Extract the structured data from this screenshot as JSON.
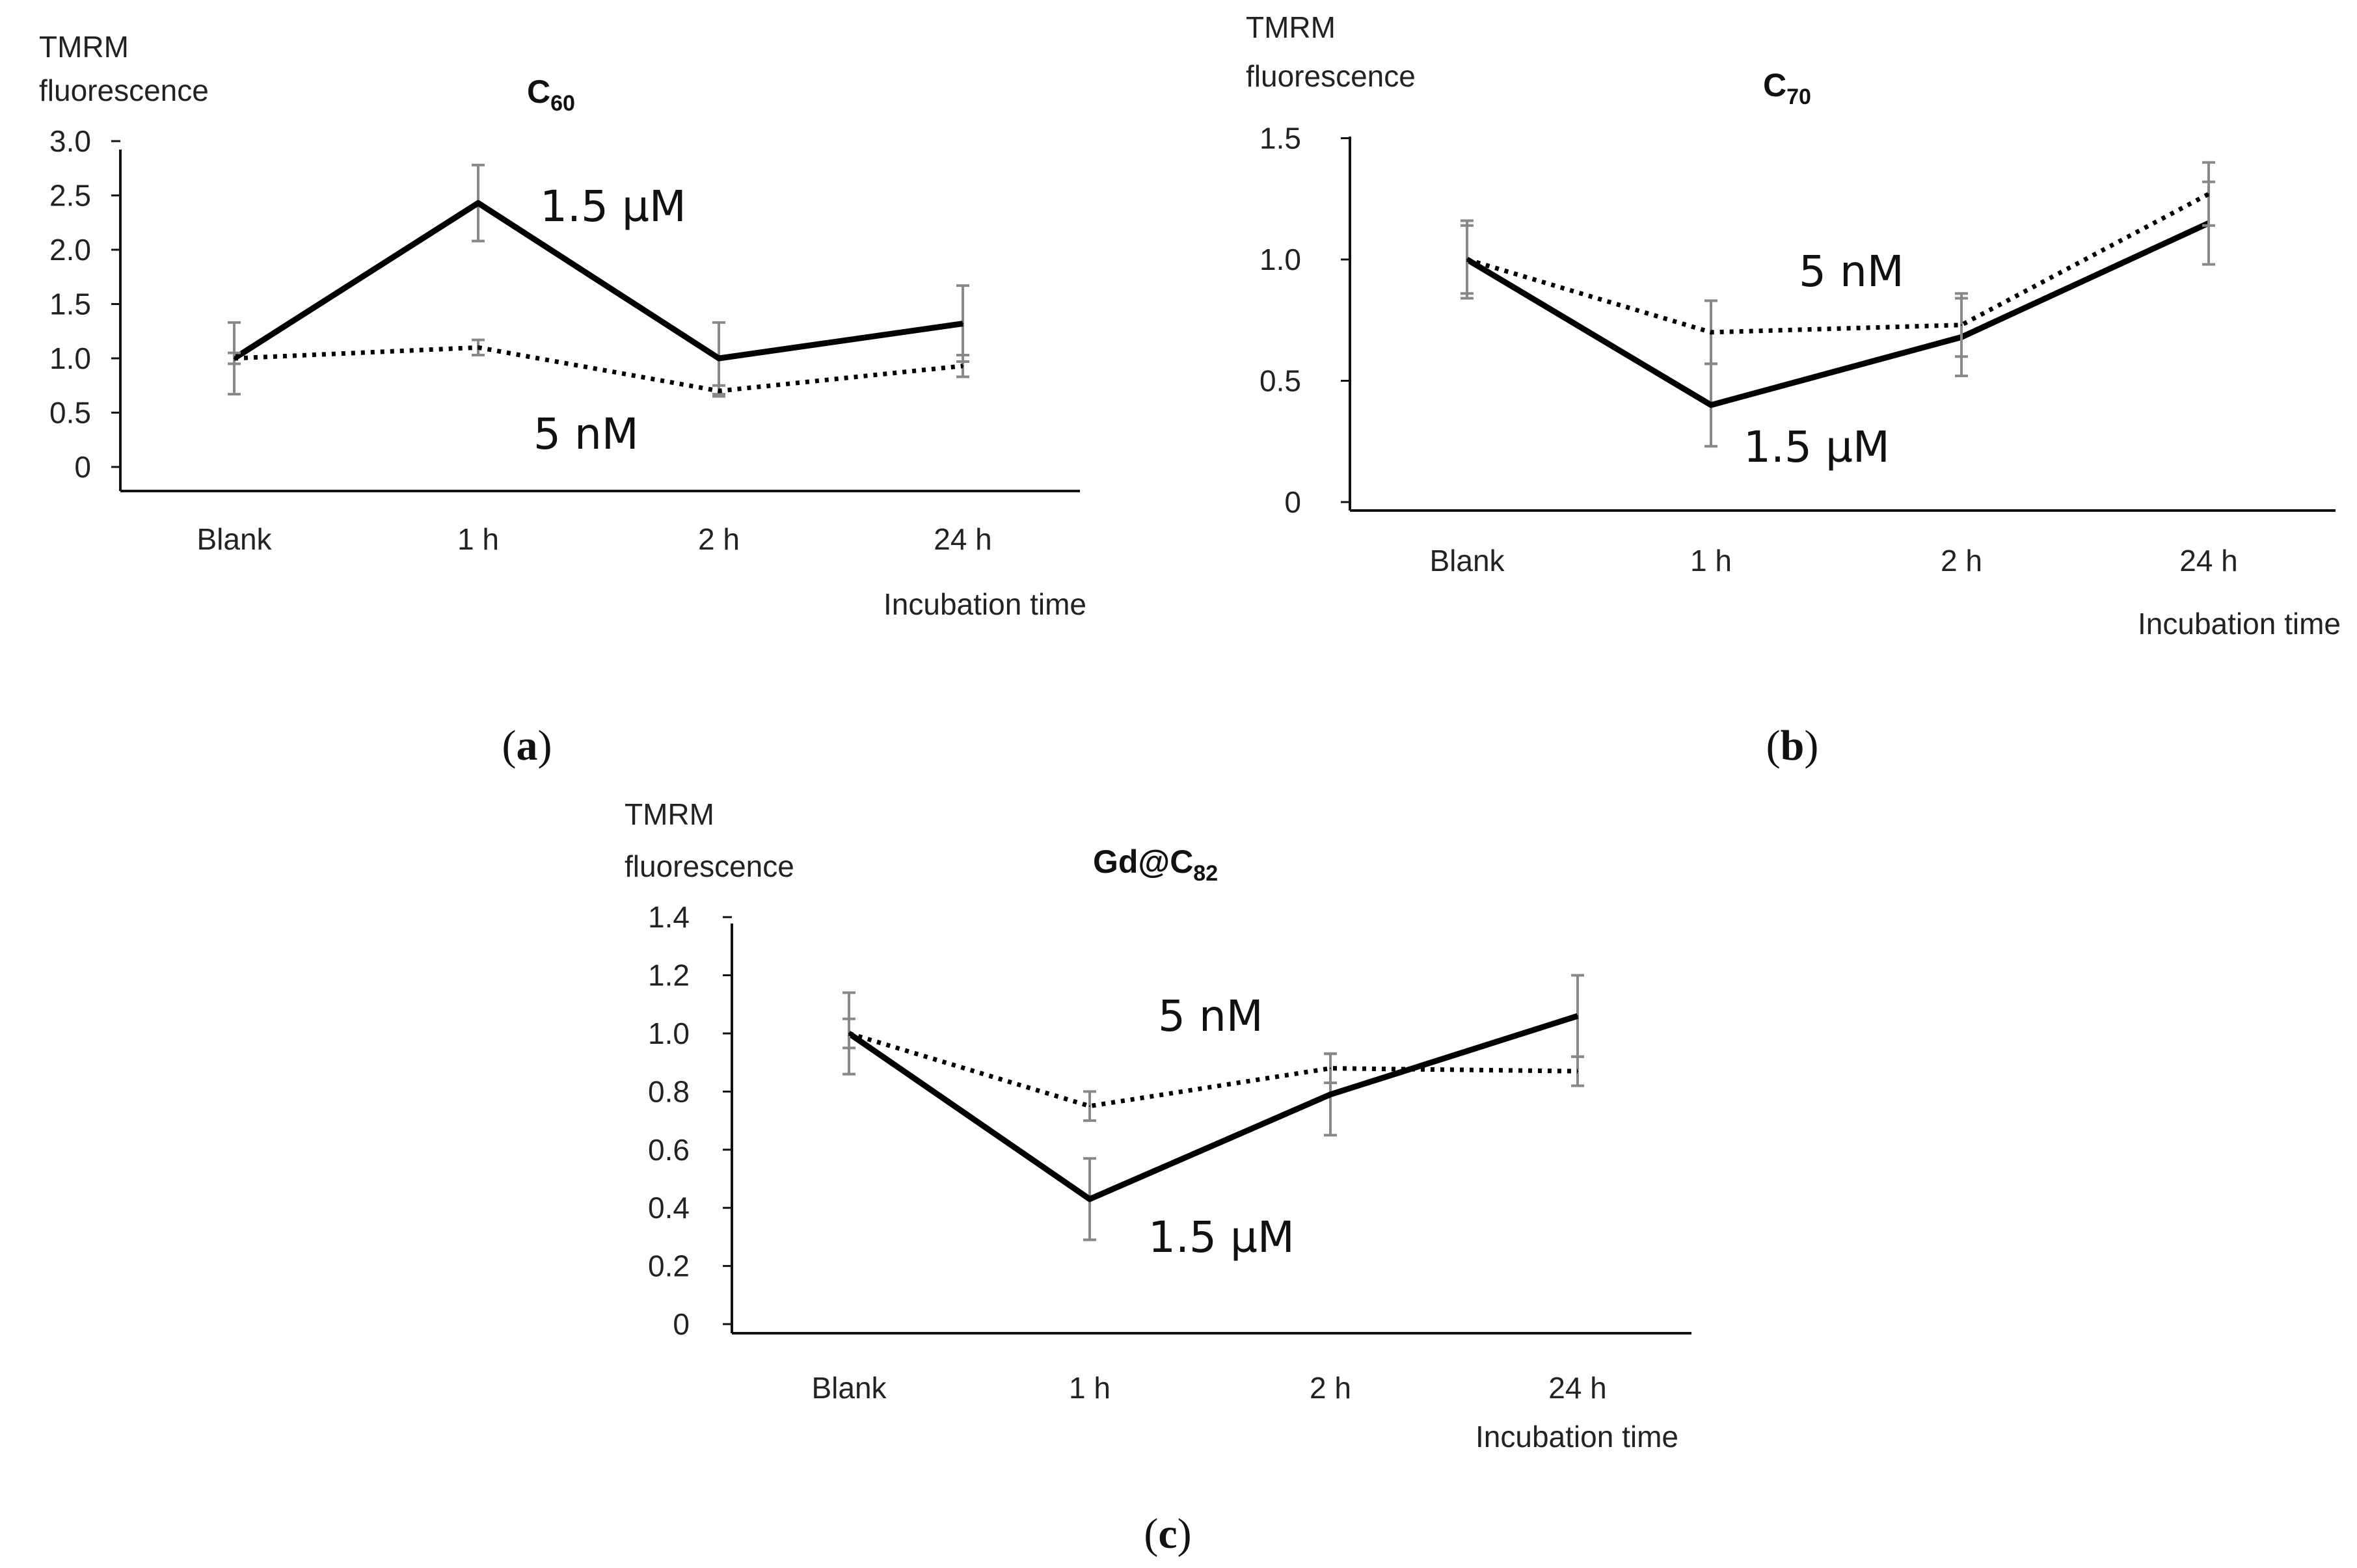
{
  "chart_data": [
    {
      "type": "line",
      "panel": "a",
      "title": "C",
      "title_sub": "60",
      "ylabel_lines": [
        "TMRM",
        "fluorescence"
      ],
      "xlabel": "Incubation time",
      "categories": [
        "Blank",
        "1 h",
        "2 h",
        "24 h"
      ],
      "yticks": [
        "0",
        "0.5",
        "1.0",
        "1.5",
        "2.0",
        "2.5",
        "3.0"
      ],
      "ylim": [
        0,
        3.0
      ],
      "series": [
        {
          "name": "1.5 µM",
          "style": "solid",
          "values": [
            1.0,
            2.43,
            1.0,
            1.32
          ],
          "errors": [
            0.33,
            0.35,
            0.33,
            0.35
          ]
        },
        {
          "name": "5 nM",
          "style": "dotted",
          "values": [
            1.0,
            1.1,
            0.7,
            0.93
          ],
          "errors": [
            0.05,
            0.07,
            0.05,
            0.1
          ]
        }
      ],
      "annotations": [
        {
          "text": "1.5 µM",
          "series": 0
        },
        {
          "text": "5 nM",
          "series": 1
        }
      ]
    },
    {
      "type": "line",
      "panel": "b",
      "title": "C",
      "title_sub": "70",
      "ylabel_lines": [
        "TMRM",
        "fluorescence"
      ],
      "xlabel": "Incubation time",
      "categories": [
        "Blank",
        "1 h",
        "2 h",
        "24 h"
      ],
      "yticks": [
        "0",
        "0.5",
        "1.0",
        "1.5"
      ],
      "ylim": [
        0,
        1.5
      ],
      "series": [
        {
          "name": "1.5 µM",
          "style": "solid",
          "values": [
            1.0,
            0.4,
            0.68,
            1.15
          ],
          "errors": [
            0.16,
            0.17,
            0.16,
            0.17
          ]
        },
        {
          "name": "5 nM",
          "style": "dotted",
          "values": [
            1.0,
            0.7,
            0.73,
            1.27
          ],
          "errors": [
            0.14,
            0.13,
            0.13,
            0.13
          ]
        }
      ],
      "annotations": [
        {
          "text": "5 nM",
          "series": 1
        },
        {
          "text": "1.5 µM",
          "series": 0
        }
      ]
    },
    {
      "type": "line",
      "panel": "c",
      "title": "Gd@C",
      "title_sub": "82",
      "ylabel_lines": [
        "TMRM",
        "fluorescence"
      ],
      "xlabel": "Incubation time",
      "categories": [
        "Blank",
        "1 h",
        "2 h",
        "24 h"
      ],
      "yticks": [
        "0",
        "0.2",
        "0.4",
        "0.6",
        "0.8",
        "1.0",
        "1.2",
        "1.4"
      ],
      "ylim": [
        0,
        1.4
      ],
      "series": [
        {
          "name": "1.5 µM",
          "style": "solid",
          "values": [
            1.0,
            0.43,
            0.79,
            1.06
          ],
          "errors": [
            0.14,
            0.14,
            0.14,
            0.14
          ]
        },
        {
          "name": "5 nM",
          "style": "dotted",
          "values": [
            1.0,
            0.75,
            0.88,
            0.87
          ],
          "errors": [
            0.05,
            0.05,
            0.05,
            0.05
          ]
        }
      ],
      "annotations": [
        {
          "text": "5 nM",
          "series": 1
        },
        {
          "text": "1.5 µM",
          "series": 0
        }
      ]
    }
  ],
  "panel_labels": [
    {
      "open": "(",
      "letter": "a",
      "close": ")"
    },
    {
      "open": "(",
      "letter": "b",
      "close": ")"
    },
    {
      "open": "(",
      "letter": "c",
      "close": ")"
    }
  ]
}
